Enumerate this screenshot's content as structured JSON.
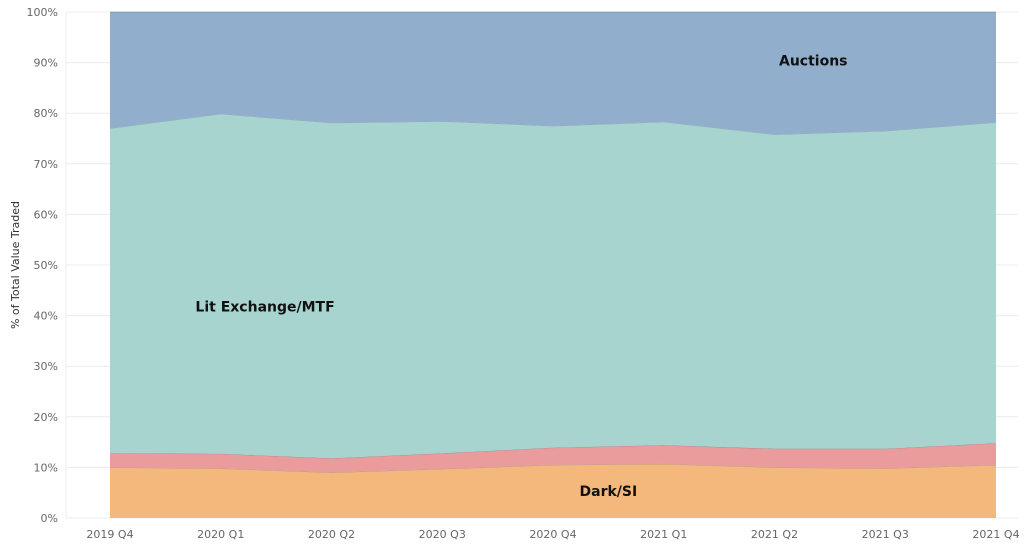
{
  "chart_data": {
    "type": "area",
    "stacked": true,
    "normalized": true,
    "ylabel": "% of Total Value Traded",
    "xlabel": "",
    "ylim": [
      0,
      100
    ],
    "yticks": [
      "0%",
      "10%",
      "20%",
      "30%",
      "40%",
      "50%",
      "60%",
      "70%",
      "80%",
      "90%",
      "100%"
    ],
    "grid": true,
    "categories": [
      "2019 Q4",
      "2020 Q1",
      "2020 Q2",
      "2020 Q3",
      "2020 Q4",
      "2021 Q1",
      "2021 Q2",
      "2021 Q3",
      "2021 Q4"
    ],
    "series": [
      {
        "name": "Dark/SI",
        "color": "#f5b87c",
        "values": [
          10.0,
          9.8,
          9.0,
          9.7,
          10.5,
          10.7,
          10.0,
          9.8,
          10.5
        ]
      },
      {
        "name": "",
        "color": "#ea9c9c",
        "values": [
          2.8,
          2.9,
          2.8,
          3.1,
          3.4,
          3.7,
          3.7,
          3.9,
          4.3
        ]
      },
      {
        "name": "Lit Exchange/MTF",
        "color": "#a8d4cf",
        "values": [
          64.2,
          67.2,
          66.3,
          65.6,
          63.6,
          63.9,
          62.1,
          62.8,
          63.4
        ]
      },
      {
        "name": "Auctions",
        "color": "#92aecd",
        "values": [
          23.0,
          20.1,
          21.9,
          21.6,
          22.5,
          21.7,
          24.2,
          23.5,
          21.8
        ]
      }
    ]
  }
}
